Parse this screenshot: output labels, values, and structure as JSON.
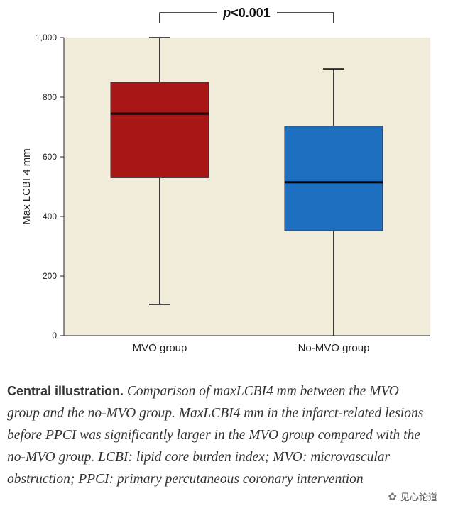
{
  "chart_data": {
    "type": "box",
    "ylabel": "Max LCBI 4 mm",
    "ylim": [
      0,
      1000
    ],
    "yticks": [
      0,
      200,
      400,
      600,
      800,
      1000
    ],
    "ytick_labels": [
      "0",
      "200",
      "400",
      "600",
      "800",
      "1,000"
    ],
    "categories": [
      "MVO group",
      "No-MVO group"
    ],
    "series": [
      {
        "name": "MVO group",
        "min": 105,
        "q1": 530,
        "median": 745,
        "q3": 850,
        "max": 1000,
        "color": "#a81616"
      },
      {
        "name": "No-MVO group",
        "min": 0,
        "q1": 352,
        "median": 515,
        "q3": 703,
        "max": 895,
        "color": "#1f6fc1"
      }
    ],
    "annotation": {
      "p_symbol": "p",
      "p_rest": "<0.001"
    },
    "plot_background": "#f1ecd9"
  },
  "caption": {
    "lead": "Central illustration.",
    "text": "Comparison of maxLCBI4 mm between the MVO group and the no-MVO group. MaxLCBI4 mm in the infarct-related lesions before PPCI was significantly larger in the MVO group compared with the no-MVO group. LCBI: lipid core burden index; MVO: microvascular obstruction; PPCI: primary percutaneous coronary intervention"
  },
  "watermark": {
    "text": "见心论道"
  }
}
